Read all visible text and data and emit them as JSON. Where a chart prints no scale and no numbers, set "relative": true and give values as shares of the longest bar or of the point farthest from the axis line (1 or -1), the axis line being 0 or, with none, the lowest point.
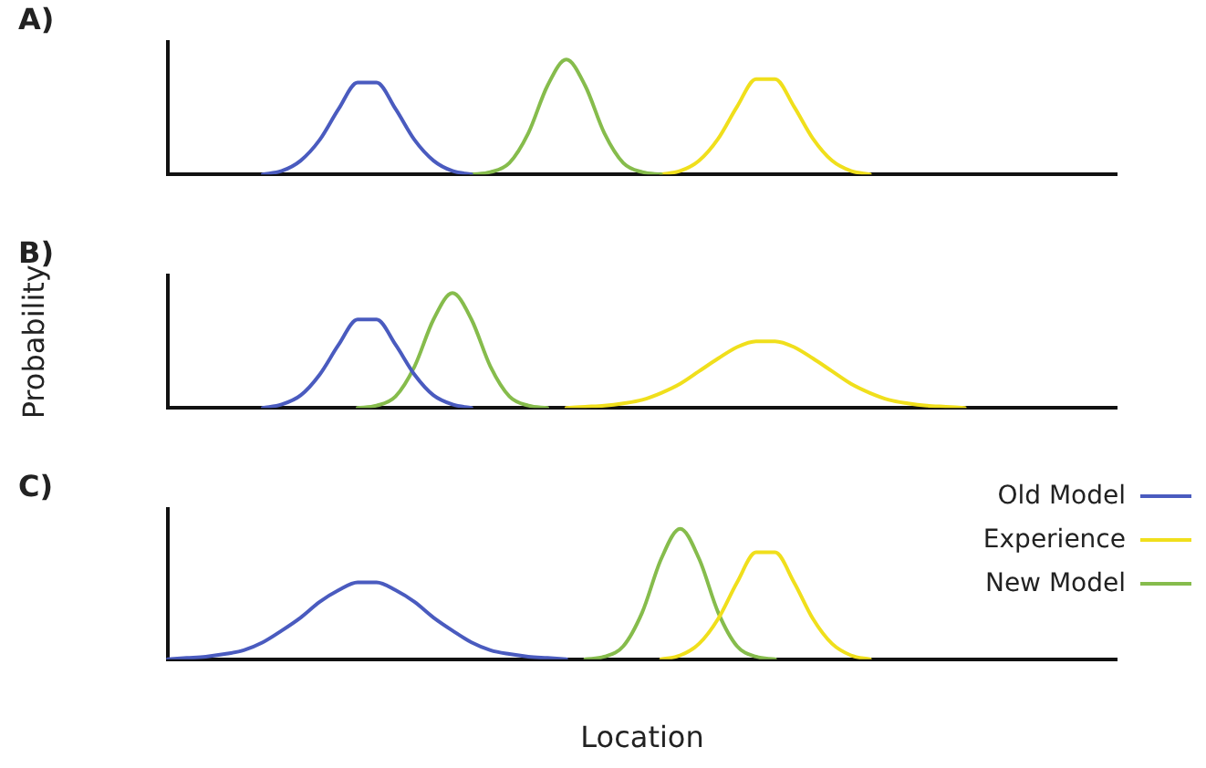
{
  "chart_data": [
    {
      "type": "line",
      "title": "A)",
      "relative": true,
      "marker": "none",
      "categories": [
        null,
        null,
        null,
        null,
        null,
        null,
        null,
        null,
        null,
        null,
        null,
        null,
        null,
        null,
        null,
        null,
        null,
        null,
        null,
        null,
        null,
        null,
        null,
        null,
        null,
        null,
        null,
        null,
        null,
        null,
        null,
        null,
        null,
        null,
        null,
        null,
        null,
        null,
        null,
        null,
        null,
        null,
        null,
        null,
        null,
        null,
        null,
        null,
        null,
        null,
        null
      ],
      "series": [
        {
          "color": "#4a5bbf",
          "values": [
            null,
            null,
            null,
            null,
            null,
            0,
            0.03,
            0.12,
            0.3,
            0.57,
            0.8,
            0.8,
            0.57,
            0.3,
            0.12,
            0.03,
            0,
            null,
            null,
            null,
            null,
            null,
            null,
            null,
            null,
            null,
            null,
            null,
            null,
            null,
            null,
            null,
            null,
            null,
            null,
            null,
            null,
            null,
            null,
            null,
            null,
            null,
            null,
            null,
            null,
            null,
            null,
            null,
            null,
            null,
            null
          ]
        },
        {
          "color": "#86bc4c",
          "values": [
            null,
            null,
            null,
            null,
            null,
            null,
            null,
            null,
            null,
            null,
            null,
            null,
            null,
            null,
            null,
            null,
            0,
            0.02,
            0.1,
            0.36,
            0.77,
            1,
            0.77,
            0.36,
            0.1,
            0.02,
            0,
            null,
            null,
            null,
            null,
            null,
            null,
            null,
            null,
            null,
            null,
            null,
            null,
            null,
            null,
            null,
            null,
            null,
            null,
            null,
            null,
            null,
            null,
            null,
            null
          ]
        },
        {
          "color": "#f0df1c",
          "values": [
            null,
            null,
            null,
            null,
            null,
            null,
            null,
            null,
            null,
            null,
            null,
            null,
            null,
            null,
            null,
            null,
            null,
            null,
            null,
            null,
            null,
            null,
            null,
            null,
            null,
            null,
            0,
            0.03,
            0.12,
            0.31,
            0.59,
            0.83,
            0.83,
            0.59,
            0.31,
            0.12,
            0.03,
            0,
            null,
            null,
            null,
            null,
            null,
            null,
            null,
            null,
            null,
            null,
            null,
            null,
            null
          ]
        }
      ]
    },
    {
      "type": "line",
      "title": "B)",
      "ylabel": "Probability",
      "relative": true,
      "marker": "none",
      "categories": [
        null,
        null,
        null,
        null,
        null,
        null,
        null,
        null,
        null,
        null,
        null,
        null,
        null,
        null,
        null,
        null,
        null,
        null,
        null,
        null,
        null,
        null,
        null,
        null,
        null,
        null,
        null,
        null,
        null,
        null,
        null,
        null,
        null,
        null,
        null,
        null,
        null,
        null,
        null,
        null,
        null,
        null,
        null,
        null,
        null,
        null,
        null,
        null,
        null,
        null,
        null
      ],
      "series": [
        {
          "color": "#4a5bbf",
          "values": [
            null,
            null,
            null,
            null,
            null,
            0,
            0.03,
            0.11,
            0.29,
            0.55,
            0.77,
            0.77,
            0.55,
            0.29,
            0.11,
            0.03,
            0,
            null,
            null,
            null,
            null,
            null,
            null,
            null,
            null,
            null,
            null,
            null,
            null,
            null,
            null,
            null,
            null,
            null,
            null,
            null,
            null,
            null,
            null,
            null,
            null,
            null,
            null,
            null,
            null,
            null,
            null,
            null,
            null,
            null,
            null
          ]
        },
        {
          "color": "#86bc4c",
          "values": [
            null,
            null,
            null,
            null,
            null,
            null,
            null,
            null,
            null,
            null,
            0,
            0.02,
            0.1,
            0.36,
            0.77,
            1,
            0.77,
            0.36,
            0.1,
            0.02,
            0,
            null,
            null,
            null,
            null,
            null,
            null,
            null,
            null,
            null,
            null,
            null,
            null,
            null,
            null,
            null,
            null,
            null,
            null,
            null,
            null,
            null,
            null,
            null,
            null,
            null,
            null,
            null,
            null,
            null,
            null
          ]
        },
        {
          "color": "#f0df1c",
          "values": [
            null,
            null,
            null,
            null,
            null,
            null,
            null,
            null,
            null,
            null,
            null,
            null,
            null,
            null,
            null,
            null,
            null,
            null,
            null,
            null,
            null,
            0,
            0.01,
            0.02,
            0.04,
            0.07,
            0.13,
            0.21,
            0.32,
            0.43,
            0.53,
            0.58,
            0.58,
            0.53,
            0.43,
            0.32,
            0.21,
            0.13,
            0.07,
            0.04,
            0.02,
            0.01,
            0,
            null,
            null,
            null,
            null,
            null,
            null,
            null,
            null
          ]
        }
      ]
    },
    {
      "type": "line",
      "title": "C)",
      "xlabel": "Location",
      "relative": true,
      "marker": "none",
      "legend": "right",
      "categories": [
        null,
        null,
        null,
        null,
        null,
        null,
        null,
        null,
        null,
        null,
        null,
        null,
        null,
        null,
        null,
        null,
        null,
        null,
        null,
        null,
        null,
        null,
        null,
        null,
        null,
        null,
        null,
        null,
        null,
        null,
        null,
        null,
        null,
        null,
        null,
        null,
        null,
        null,
        null,
        null,
        null,
        null,
        null,
        null,
        null,
        null,
        null,
        null,
        null,
        null,
        null
      ],
      "series": [
        {
          "name": "Old Model",
          "color": "#4a5bbf",
          "values": [
            0,
            0.01,
            0.02,
            0.04,
            0.07,
            0.13,
            0.22,
            0.32,
            0.44,
            0.53,
            0.59,
            0.59,
            0.53,
            0.44,
            0.32,
            0.22,
            0.13,
            0.07,
            0.04,
            0.02,
            0.01,
            0,
            null,
            null,
            null,
            null,
            null,
            null,
            null,
            null,
            null,
            null,
            null,
            null,
            null,
            null,
            null,
            null,
            null,
            null,
            null,
            null,
            null,
            null,
            null,
            null,
            null,
            null,
            null,
            null,
            null
          ]
        },
        {
          "name": "Experience",
          "color": "#f0df1c",
          "values": [
            null,
            null,
            null,
            null,
            null,
            null,
            null,
            null,
            null,
            null,
            null,
            null,
            null,
            null,
            null,
            null,
            null,
            null,
            null,
            null,
            null,
            null,
            null,
            null,
            null,
            null,
            0,
            0.03,
            0.12,
            0.31,
            0.59,
            0.82,
            0.82,
            0.59,
            0.31,
            0.12,
            0.03,
            0,
            null,
            null,
            null,
            null,
            null,
            null,
            null,
            null,
            null,
            null,
            null,
            null,
            null
          ]
        },
        {
          "name": "New Model",
          "color": "#86bc4c",
          "values": [
            null,
            null,
            null,
            null,
            null,
            null,
            null,
            null,
            null,
            null,
            null,
            null,
            null,
            null,
            null,
            null,
            null,
            null,
            null,
            null,
            null,
            null,
            0,
            0.02,
            0.1,
            0.36,
            0.77,
            1,
            0.77,
            0.36,
            0.1,
            0.02,
            0,
            null,
            null,
            null,
            null,
            null,
            null,
            null,
            null,
            null,
            null,
            null,
            null,
            null,
            null,
            null,
            null,
            null,
            null
          ]
        }
      ]
    }
  ]
}
